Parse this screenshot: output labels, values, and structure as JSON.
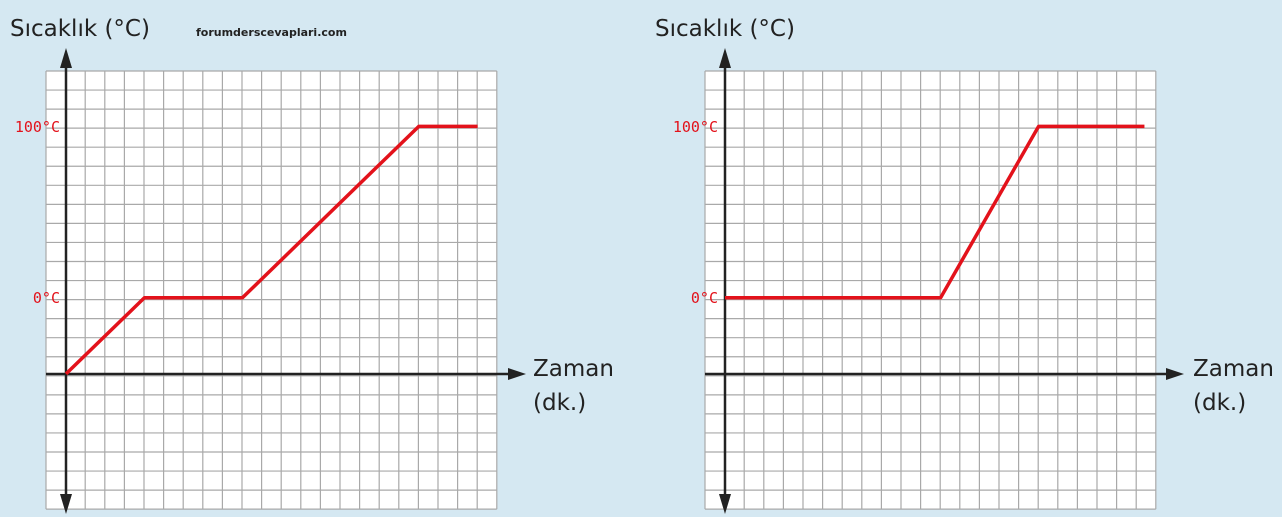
{
  "watermark": "forumderscevaplari.com",
  "colors": {
    "line": "#e3121b",
    "grid": "#a9a9a9",
    "axis": "#222222",
    "background": "#d5e8f2"
  },
  "chart_data": [
    {
      "type": "line",
      "ylabel": "Sıcaklık (°C)",
      "xlabel_line1": "Zaman",
      "xlabel_line2": "(dk.)",
      "yticks": [
        {
          "value": 0,
          "label": "0°C"
        },
        {
          "value": 100,
          "label": "100°C"
        }
      ],
      "grid": true,
      "x": [
        0,
        4,
        9,
        18,
        21
      ],
      "y": [
        -44.4,
        0,
        0,
        100,
        100
      ]
    },
    {
      "type": "line",
      "ylabel": "Sıcaklık (°C)",
      "xlabel_line1": "Zaman",
      "xlabel_line2": "(dk.)",
      "yticks": [
        {
          "value": 0,
          "label": "0°C"
        },
        {
          "value": 100,
          "label": "100°C"
        }
      ],
      "grid": true,
      "x": [
        0,
        11,
        16,
        21.4
      ],
      "y": [
        0,
        0,
        100,
        100
      ]
    }
  ]
}
